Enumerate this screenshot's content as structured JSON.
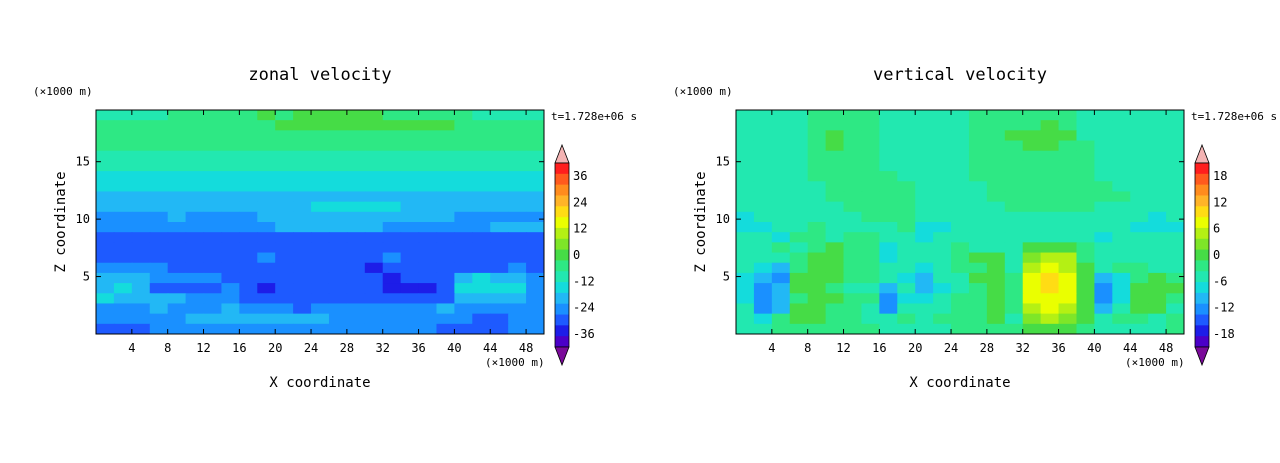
{
  "chart_data": [
    {
      "type": "heatmap",
      "title": "zonal velocity",
      "xlabel": "X coordinate",
      "ylabel": "Z coordinate",
      "x_unit": "(×1000 m)",
      "y_unit": "(×1000 m)",
      "time_label": "t=1.728e+06 s",
      "xlim": [
        0,
        50
      ],
      "ylim": [
        0,
        19.5
      ],
      "xticks": [
        4,
        8,
        12,
        16,
        20,
        24,
        28,
        32,
        36,
        40,
        44,
        48
      ],
      "yticks": [
        5,
        10,
        15
      ],
      "colorbar": {
        "ticks": [
          36,
          24,
          12,
          0,
          -12,
          -24,
          -36
        ],
        "range": [
          -42,
          42
        ],
        "colors": [
          "#7a0a9a",
          "#4b00c8",
          "#1d1de8",
          "#1e5aff",
          "#1a90ff",
          "#22b8f5",
          "#14dcdc",
          "#22e8b0",
          "#2ee884",
          "#46dc46",
          "#7ee628",
          "#b4f014",
          "#eaff00",
          "#ffdc14",
          "#ffb428",
          "#ff8c1e",
          "#ff5a1e",
          "#ff1e1e",
          "#f4b4b4"
        ]
      },
      "field": {
        "rows_top_to_bottom": [
          "7777888889899999888887777",
          "8888888888999999999988888",
          "8888888888888888888888888",
          "8888888888888888888888888",
          "7777777777777777777777777",
          "7777777777777777777777777",
          "6666666666666666666666666",
          "6666666666666666666666666",
          "5555555555555555555555555",
          "5555555555556666655555555",
          "4444544445555555555544444",
          "4444444444555555444444555",
          "3333333333333333333333333",
          "3333333333333333333333333",
          "3333333334333333433333333",
          "4444333333333332333333343",
          "5554444333333333233356554",
          "5653333432333333222366664",
          "6555544433333333333355554",
          "4445444544434444444544444",
          "4444455555555444444443344",
          "3334444444444444444333344"
        ]
      }
    },
    {
      "type": "heatmap",
      "title": "vertical velocity",
      "xlabel": "X coordinate",
      "ylabel": "Z coordinate",
      "x_unit": "(×1000 m)",
      "y_unit": "(×1000 m)",
      "time_label": "t=1.728e+06 s",
      "xlim": [
        0,
        50
      ],
      "ylim": [
        0,
        19.5
      ],
      "xticks": [
        4,
        8,
        12,
        16,
        20,
        24,
        28,
        32,
        36,
        40,
        44,
        48
      ],
      "yticks": [
        5,
        10,
        15
      ],
      "colorbar": {
        "ticks": [
          18,
          12,
          6,
          0,
          -6,
          -12,
          -18
        ],
        "range": [
          -21,
          21
        ],
        "colors": [
          "#7a0a9a",
          "#4b00c8",
          "#1d1de8",
          "#1e5aff",
          "#1a90ff",
          "#22b8f5",
          "#14dcdc",
          "#22e8b0",
          "#2ee884",
          "#46dc46",
          "#7ee628",
          "#b4f014",
          "#eaff00",
          "#ffdc14",
          "#ffb428",
          "#ff8c1e",
          "#ff5a1e",
          "#ff1e1e",
          "#f4b4b4"
        ]
      },
      "field": {
        "rows_top_to_bottom": [
          "7777888877777888888777777",
          "7777888877777888898777777",
          "7777898877777889999777777",
          "7777898877777888998877777",
          "7777888877777888888877777",
          "7777888877777888888877777",
          "7777888887777888888877777",
          "7777788888777788888887777",
          "7777788888777788888888777",
          "7777778888777778888877777",
          "6777777888777777777777767",
          "6677877778667777777777666",
          "7768878877677777777767777",
          "7787898867778777999877777",
          "7778998867778997ABB877777",
          "7658998877678897BCB978877",
          "6549998876577998CDC956898",
          "6459987757567898CDC946999",
          "6458998846678898CCC946998",
          "7459988747778898BCB957997",
          "7689988778788897ABA978878",
          "7788888877778888999877778"
        ]
      }
    }
  ]
}
